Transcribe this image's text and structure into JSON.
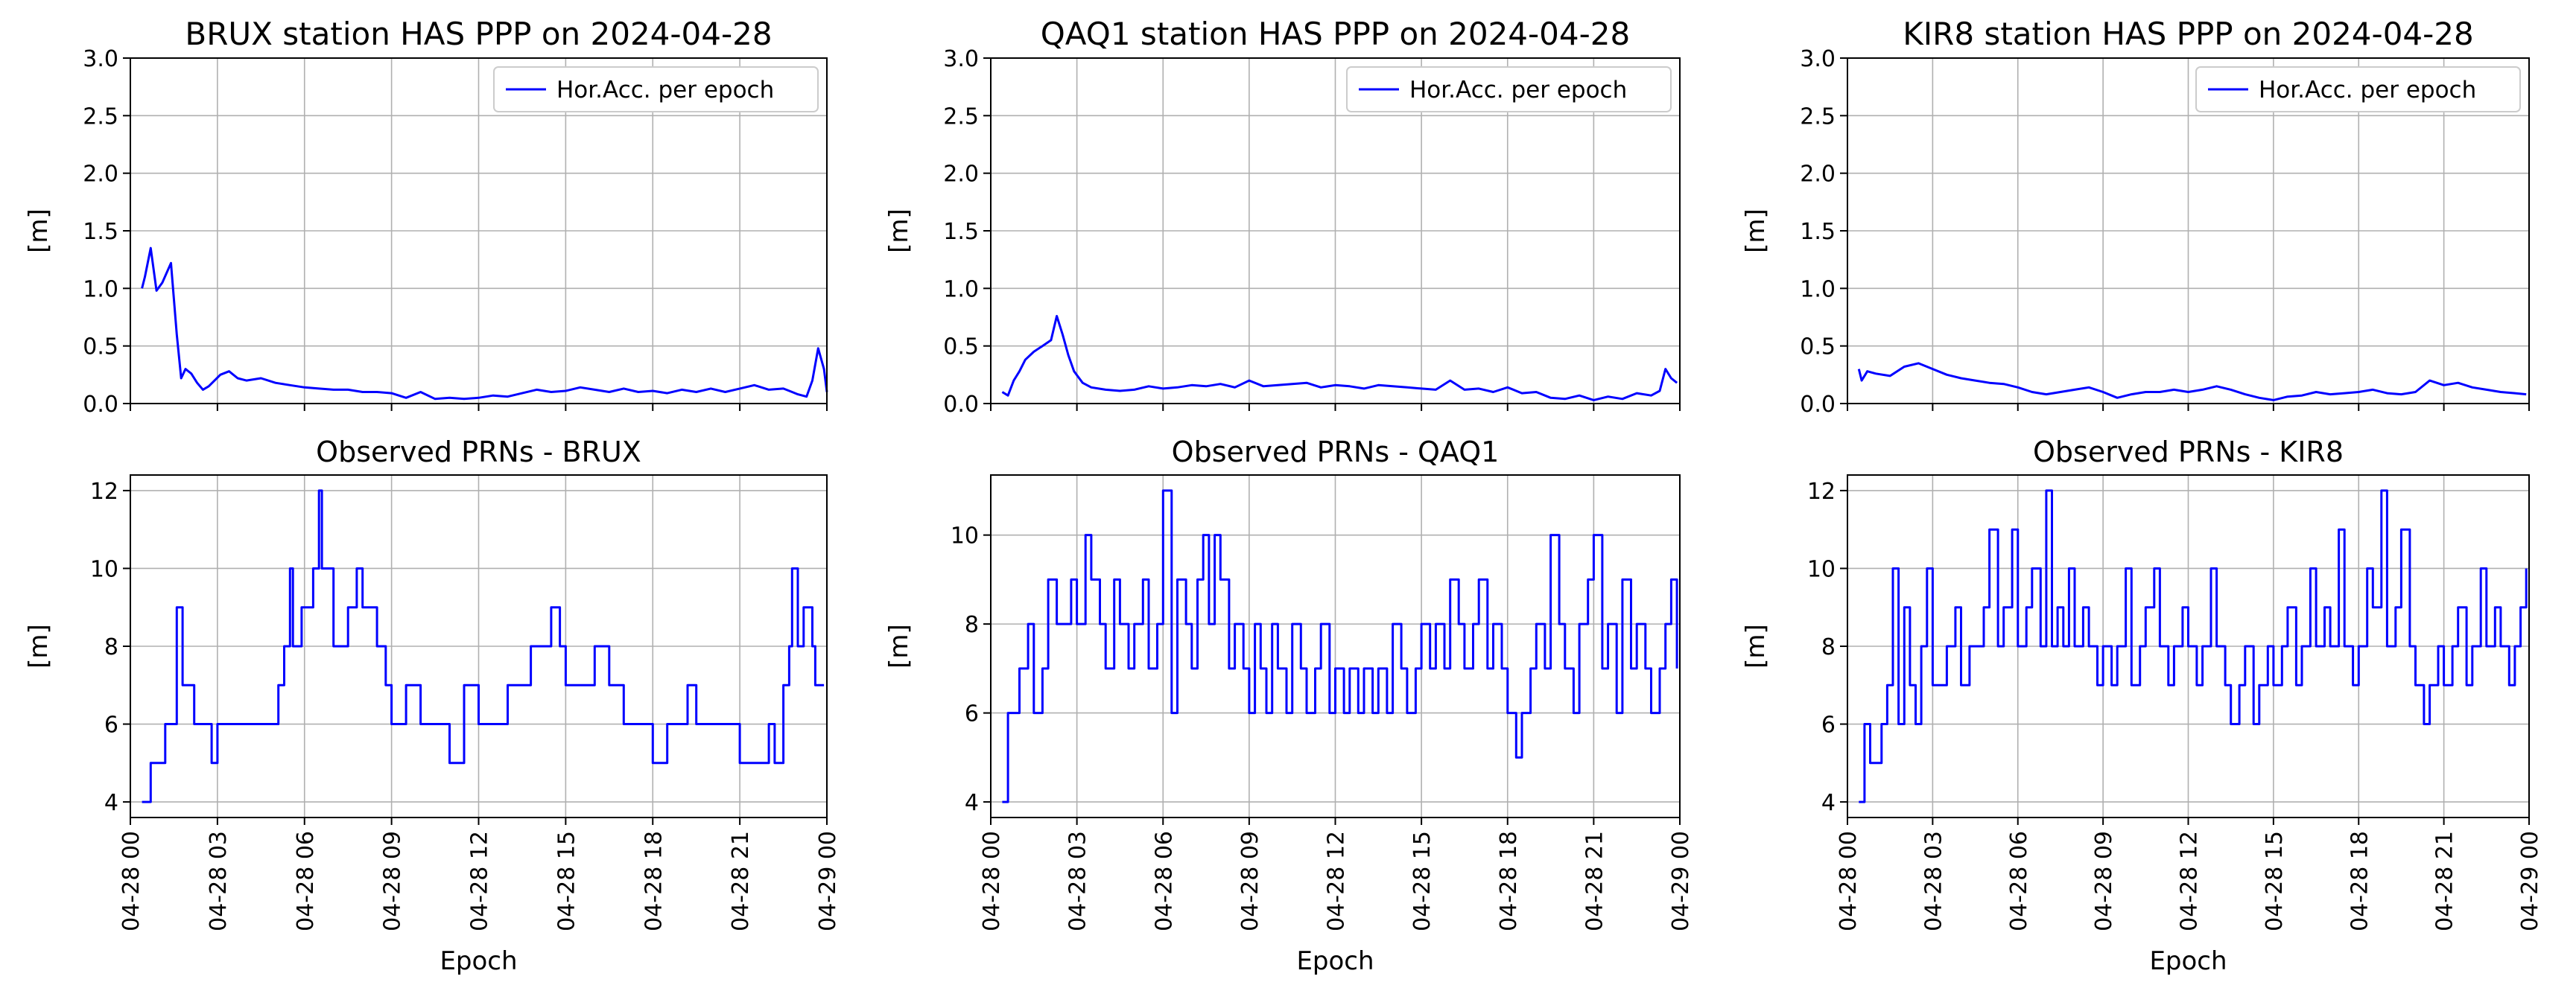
{
  "chart_data": [
    {
      "station": "BRUX",
      "type": "line",
      "title": "BRUX station HAS PPP on 2024-04-28",
      "ylabel": "[m]",
      "ylim": [
        0,
        3
      ],
      "yticks": [
        "0.0",
        "0.5",
        "1.0",
        "1.5",
        "2.0",
        "2.5",
        "3.0"
      ],
      "xlim": [
        0,
        24
      ],
      "legend": "Hor.Acc. per epoch",
      "color": "#0000ff",
      "series": [
        {
          "name": "Hor.Acc. per epoch",
          "x": [
            0.4,
            0.5,
            0.7,
            0.9,
            1.1,
            1.4,
            1.6,
            1.75,
            1.9,
            2.1,
            2.3,
            2.5,
            2.7,
            2.9,
            3.1,
            3.4,
            3.7,
            4,
            4.5,
            5,
            5.5,
            6,
            6.5,
            7,
            7.5,
            8,
            8.5,
            9,
            9.5,
            10,
            10.5,
            11,
            11.5,
            12,
            12.5,
            13,
            13.5,
            14,
            14.5,
            15,
            15.5,
            16,
            16.5,
            17,
            17.5,
            18,
            18.5,
            19,
            19.5,
            20,
            20.5,
            21,
            21.5,
            22,
            22.5,
            22.8,
            23,
            23.3,
            23.5,
            23.7,
            23.9,
            24
          ],
          "y": [
            1.0,
            1.1,
            1.35,
            0.98,
            1.05,
            1.22,
            0.6,
            0.22,
            0.3,
            0.26,
            0.18,
            0.12,
            0.15,
            0.2,
            0.25,
            0.28,
            0.22,
            0.2,
            0.22,
            0.18,
            0.16,
            0.14,
            0.13,
            0.12,
            0.12,
            0.1,
            0.1,
            0.09,
            0.05,
            0.1,
            0.04,
            0.05,
            0.04,
            0.05,
            0.07,
            0.06,
            0.09,
            0.12,
            0.1,
            0.11,
            0.14,
            0.12,
            0.1,
            0.13,
            0.1,
            0.11,
            0.09,
            0.12,
            0.1,
            0.13,
            0.1,
            0.13,
            0.16,
            0.12,
            0.13,
            0.1,
            0.08,
            0.06,
            0.2,
            0.48,
            0.3,
            0.1
          ]
        }
      ]
    },
    {
      "station": "QAQ1",
      "type": "line",
      "title": "QAQ1 station HAS PPP on 2024-04-28",
      "ylabel": "[m]",
      "ylim": [
        0,
        3
      ],
      "yticks": [
        "0.0",
        "0.5",
        "1.0",
        "1.5",
        "2.0",
        "2.5",
        "3.0"
      ],
      "xlim": [
        0,
        24
      ],
      "legend": "Hor.Acc. per epoch",
      "color": "#0000ff",
      "series": [
        {
          "name": "Hor.Acc. per epoch",
          "x": [
            0.4,
            0.6,
            0.8,
            1,
            1.2,
            1.5,
            1.8,
            2.1,
            2.3,
            2.5,
            2.7,
            2.9,
            3.2,
            3.5,
            4,
            4.5,
            5,
            5.5,
            6,
            6.5,
            7,
            7.5,
            8,
            8.5,
            9,
            9.5,
            10,
            10.5,
            11,
            11.5,
            12,
            12.5,
            13,
            13.5,
            14,
            14.5,
            15,
            15.5,
            16,
            16.5,
            17,
            17.5,
            18,
            18.5,
            19,
            19.5,
            20,
            20.5,
            21,
            21.5,
            22,
            22.5,
            23,
            23.3,
            23.5,
            23.7,
            23.9
          ],
          "y": [
            0.1,
            0.07,
            0.2,
            0.28,
            0.38,
            0.45,
            0.5,
            0.55,
            0.76,
            0.6,
            0.42,
            0.28,
            0.18,
            0.14,
            0.12,
            0.11,
            0.12,
            0.15,
            0.13,
            0.14,
            0.16,
            0.15,
            0.17,
            0.14,
            0.2,
            0.15,
            0.16,
            0.17,
            0.18,
            0.14,
            0.16,
            0.15,
            0.13,
            0.16,
            0.15,
            0.14,
            0.13,
            0.12,
            0.2,
            0.12,
            0.13,
            0.1,
            0.14,
            0.09,
            0.1,
            0.05,
            0.04,
            0.07,
            0.03,
            0.06,
            0.04,
            0.09,
            0.07,
            0.11,
            0.3,
            0.22,
            0.18
          ]
        }
      ]
    },
    {
      "station": "KIR8",
      "type": "line",
      "title": "KIR8 station HAS PPP on 2024-04-28",
      "ylabel": "[m]",
      "ylim": [
        0,
        3
      ],
      "yticks": [
        "0.0",
        "0.5",
        "1.0",
        "1.5",
        "2.0",
        "2.5",
        "3.0"
      ],
      "xlim": [
        0,
        24
      ],
      "legend": "Hor.Acc. per epoch",
      "color": "#0000ff",
      "series": [
        {
          "name": "Hor.Acc. per epoch",
          "x": [
            0.4,
            0.5,
            0.7,
            1,
            1.5,
            2,
            2.5,
            3,
            3.5,
            4,
            4.5,
            5,
            5.5,
            6,
            6.5,
            7,
            7.5,
            8,
            8.5,
            9,
            9.5,
            10,
            10.5,
            11,
            11.5,
            12,
            12.5,
            13,
            13.5,
            14,
            14.5,
            15,
            15.5,
            16,
            16.5,
            17,
            17.5,
            18,
            18.5,
            19,
            19.5,
            20,
            20.5,
            21,
            21.5,
            22,
            22.5,
            23,
            23.5,
            23.9
          ],
          "y": [
            0.3,
            0.2,
            0.28,
            0.26,
            0.24,
            0.32,
            0.35,
            0.3,
            0.25,
            0.22,
            0.2,
            0.18,
            0.17,
            0.14,
            0.1,
            0.08,
            0.1,
            0.12,
            0.14,
            0.1,
            0.05,
            0.08,
            0.1,
            0.1,
            0.12,
            0.1,
            0.12,
            0.15,
            0.12,
            0.08,
            0.05,
            0.03,
            0.06,
            0.07,
            0.1,
            0.08,
            0.09,
            0.1,
            0.12,
            0.09,
            0.08,
            0.1,
            0.2,
            0.16,
            0.18,
            0.14,
            0.12,
            0.1,
            0.09,
            0.08
          ]
        }
      ]
    },
    {
      "station": "BRUX",
      "type": "line",
      "title": "Observed PRNs - BRUX",
      "ylabel": "[m]",
      "xlabel": "Epoch",
      "ylim": [
        3.6,
        12.4
      ],
      "yticks": [
        "4",
        "6",
        "8",
        "10",
        "12"
      ],
      "xlim": [
        0,
        24
      ],
      "xticks": [
        "04-28 00",
        "04-28 03",
        "04-28 06",
        "04-28 09",
        "04-28 12",
        "04-28 15",
        "04-28 18",
        "04-28 21",
        "04-29 00"
      ],
      "color": "#0000ff",
      "series": [
        {
          "name": "Observed PRNs",
          "x": [
            0.4,
            0.6,
            0.7,
            1.1,
            1.2,
            1.5,
            1.6,
            1.8,
            2.2,
            2.5,
            2.8,
            3,
            3.3,
            5.1,
            5.3,
            5.5,
            5.6,
            5.9,
            6.2,
            6.3,
            6.5,
            6.6,
            7,
            7.5,
            7.8,
            8,
            8.5,
            8.8,
            9,
            9.5,
            10,
            10.8,
            11,
            11.5,
            12,
            12.3,
            12.5,
            13,
            13.8,
            14,
            14.5,
            14.8,
            15,
            15.5,
            16,
            16.5,
            17,
            17.5,
            18,
            18.5,
            19,
            19.2,
            19.5,
            20,
            20.5,
            21,
            21.5,
            22,
            22.2,
            22.5,
            22.7,
            22.8,
            23,
            23.2,
            23.3,
            23.5,
            23.6,
            23.9
          ],
          "y": [
            4,
            4,
            5,
            5,
            6,
            6,
            9,
            7,
            6,
            6,
            5,
            6,
            6,
            7,
            8,
            10,
            8,
            9,
            9,
            10,
            12,
            10,
            8,
            9,
            10,
            9,
            8,
            7,
            6,
            7,
            6,
            6,
            5,
            7,
            6,
            6,
            6,
            7,
            8,
            8,
            9,
            8,
            7,
            7,
            8,
            7,
            6,
            6,
            5,
            6,
            6,
            7,
            6,
            6,
            6,
            5,
            5,
            6,
            5,
            7,
            8,
            10,
            8,
            9,
            9,
            8,
            7,
            7
          ]
        }
      ]
    },
    {
      "station": "QAQ1",
      "type": "line",
      "title": "Observed PRNs - QAQ1",
      "ylabel": "[m]",
      "xlabel": "Epoch",
      "ylim": [
        3.65,
        11.35
      ],
      "yticks": [
        "4",
        "6",
        "8",
        "10"
      ],
      "xlim": [
        0,
        24
      ],
      "xticks": [
        "04-28 00",
        "04-28 03",
        "04-28 06",
        "04-28 09",
        "04-28 12",
        "04-28 15",
        "04-28 18",
        "04-28 21",
        "04-29 00"
      ],
      "color": "#0000ff",
      "series": [
        {
          "name": "Observed PRNs",
          "x": [
            0.4,
            0.6,
            0.8,
            1,
            1.3,
            1.5,
            1.8,
            2,
            2.3,
            2.5,
            2.8,
            3,
            3.3,
            3.5,
            3.8,
            4,
            4.3,
            4.5,
            4.8,
            5,
            5.3,
            5.5,
            5.8,
            6,
            6.3,
            6.5,
            6.8,
            7,
            7.2,
            7.4,
            7.6,
            7.8,
            8,
            8.3,
            8.5,
            8.8,
            9,
            9.2,
            9.4,
            9.6,
            9.8,
            10,
            10.3,
            10.5,
            10.8,
            11,
            11.3,
            11.5,
            11.8,
            12,
            12.3,
            12.5,
            12.8,
            13,
            13.3,
            13.5,
            13.8,
            14,
            14.3,
            14.5,
            14.8,
            15,
            15.3,
            15.5,
            15.8,
            16,
            16.3,
            16.5,
            16.8,
            17,
            17.3,
            17.5,
            17.8,
            18,
            18.3,
            18.5,
            18.8,
            19,
            19.3,
            19.5,
            19.8,
            20,
            20.3,
            20.5,
            20.8,
            21,
            21.3,
            21.5,
            21.8,
            22,
            22.3,
            22.5,
            22.8,
            23,
            23.3,
            23.5,
            23.7,
            23.9
          ],
          "y": [
            4,
            6,
            6,
            7,
            8,
            6,
            7,
            9,
            8,
            8,
            9,
            8,
            10,
            9,
            8,
            7,
            9,
            8,
            7,
            8,
            9,
            7,
            8,
            11,
            6,
            9,
            8,
            7,
            9,
            10,
            8,
            10,
            9,
            7,
            8,
            7,
            6,
            8,
            7,
            6,
            8,
            7,
            6,
            8,
            7,
            6,
            7,
            8,
            6,
            7,
            6,
            7,
            6,
            7,
            6,
            7,
            6,
            8,
            7,
            6,
            7,
            8,
            7,
            8,
            7,
            9,
            8,
            7,
            8,
            9,
            7,
            8,
            7,
            6,
            5,
            6,
            7,
            8,
            7,
            10,
            8,
            7,
            6,
            8,
            9,
            10,
            7,
            8,
            6,
            9,
            7,
            8,
            7,
            6,
            7,
            8,
            9,
            7
          ]
        }
      ]
    },
    {
      "station": "KIR8",
      "type": "line",
      "title": "Observed PRNs - KIR8",
      "ylabel": "[m]",
      "xlabel": "Epoch",
      "ylim": [
        3.6,
        12.4
      ],
      "yticks": [
        "4",
        "6",
        "8",
        "10",
        "12"
      ],
      "xlim": [
        0,
        24
      ],
      "xticks": [
        "04-28 00",
        "04-28 03",
        "04-28 06",
        "04-28 09",
        "04-28 12",
        "04-28 15",
        "04-28 18",
        "04-28 21",
        "04-29 00"
      ],
      "color": "#0000ff",
      "series": [
        {
          "name": "Observed PRNs",
          "x": [
            0.4,
            0.6,
            0.8,
            1,
            1.2,
            1.4,
            1.6,
            1.8,
            2,
            2.2,
            2.4,
            2.6,
            2.8,
            3,
            3.3,
            3.5,
            3.8,
            4,
            4.3,
            4.5,
            4.8,
            5,
            5.3,
            5.5,
            5.8,
            6,
            6.3,
            6.5,
            6.8,
            7,
            7.2,
            7.4,
            7.6,
            7.8,
            8,
            8.3,
            8.5,
            8.8,
            9,
            9.3,
            9.5,
            9.8,
            10,
            10.3,
            10.5,
            10.8,
            11,
            11.3,
            11.5,
            11.8,
            12,
            12.3,
            12.5,
            12.8,
            13,
            13.3,
            13.5,
            13.8,
            14,
            14.3,
            14.5,
            14.8,
            15,
            15.3,
            15.5,
            15.8,
            16,
            16.3,
            16.5,
            16.8,
            17,
            17.3,
            17.5,
            17.8,
            18,
            18.3,
            18.5,
            18.8,
            19,
            19.3,
            19.5,
            19.8,
            20,
            20.3,
            20.5,
            20.8,
            21,
            21.3,
            21.5,
            21.8,
            22,
            22.3,
            22.5,
            22.8,
            23,
            23.3,
            23.5,
            23.7,
            23.9
          ],
          "y": [
            4,
            6,
            5,
            5,
            6,
            7,
            10,
            6,
            9,
            7,
            6,
            8,
            10,
            7,
            7,
            8,
            9,
            7,
            8,
            8,
            9,
            11,
            8,
            9,
            11,
            8,
            9,
            10,
            8,
            12,
            8,
            9,
            8,
            10,
            8,
            9,
            8,
            7,
            8,
            7,
            8,
            10,
            7,
            8,
            9,
            10,
            8,
            7,
            8,
            9,
            8,
            7,
            8,
            10,
            8,
            7,
            6,
            7,
            8,
            6,
            7,
            8,
            7,
            8,
            9,
            7,
            8,
            10,
            8,
            9,
            8,
            11,
            8,
            7,
            8,
            10,
            9,
            12,
            8,
            9,
            11,
            8,
            7,
            6,
            7,
            8,
            7,
            8,
            9,
            7,
            8,
            10,
            8,
            9,
            8,
            7,
            8,
            9,
            10
          ]
        }
      ]
    }
  ]
}
